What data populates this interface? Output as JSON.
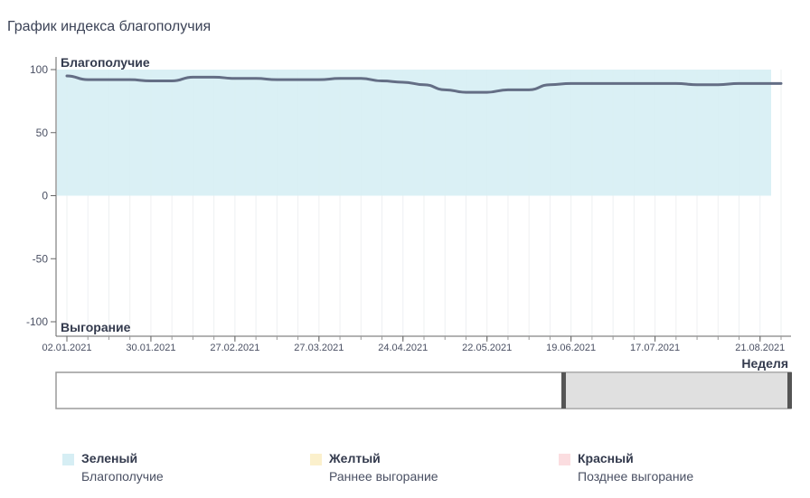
{
  "title": "График индекса благополучия",
  "chart_data": {
    "type": "line",
    "title": "График индекса благополучия",
    "ylim": [
      -100,
      100
    ],
    "yticks": [
      100,
      50,
      0,
      -50,
      -100
    ],
    "y_top_label": "Благополучие",
    "y_bottom_label": "Выгорание",
    "xlabel": "Неделя",
    "x_start": "02.01.2021",
    "x_end": "28.08.2021",
    "xticks": [
      "02.01.2021",
      "30.01.2021",
      "27.02.2021",
      "27.03.2021",
      "24.04.2021",
      "22.05.2021",
      "19.06.2021",
      "17.07.2021",
      "21.08.2021"
    ],
    "band": {
      "from": 0,
      "to": 100,
      "color": "#d6eef4"
    },
    "grid": true,
    "series": [
      {
        "color": "#646e85",
        "x": [
          "02.01.2021",
          "09.01.2021",
          "16.01.2021",
          "23.01.2021",
          "30.01.2021",
          "06.02.2021",
          "13.02.2021",
          "20.02.2021",
          "27.02.2021",
          "06.03.2021",
          "13.03.2021",
          "20.03.2021",
          "27.03.2021",
          "03.04.2021",
          "10.04.2021",
          "17.04.2021",
          "24.04.2021",
          "01.05.2021",
          "08.05.2021",
          "15.05.2021",
          "22.05.2021",
          "29.05.2021",
          "05.06.2021",
          "12.06.2021",
          "19.06.2021",
          "26.06.2021",
          "03.07.2021",
          "10.07.2021",
          "17.07.2021",
          "24.07.2021",
          "31.07.2021",
          "07.08.2021",
          "14.08.2021",
          "21.08.2021",
          "28.08.2021"
        ],
        "values": [
          95,
          92,
          92,
          92,
          91,
          91,
          94,
          94,
          93,
          93,
          92,
          92,
          92,
          93,
          93,
          91,
          90,
          88,
          84,
          82,
          82,
          84,
          84,
          88,
          89,
          89,
          89,
          89,
          89,
          89,
          88,
          88,
          89,
          89,
          89
        ]
      }
    ]
  },
  "navigator": {
    "selected_from": 0.69,
    "selected_to": 1.0
  },
  "legend": [
    {
      "name": "Зеленый",
      "desc": "Благополучие",
      "color": "#d6eef4"
    },
    {
      "name": "Желтый",
      "desc": "Раннее выгорание",
      "color": "#fbf0cc"
    },
    {
      "name": "Красный",
      "desc": "Позднее выгорание",
      "color": "#fbdde0"
    }
  ]
}
